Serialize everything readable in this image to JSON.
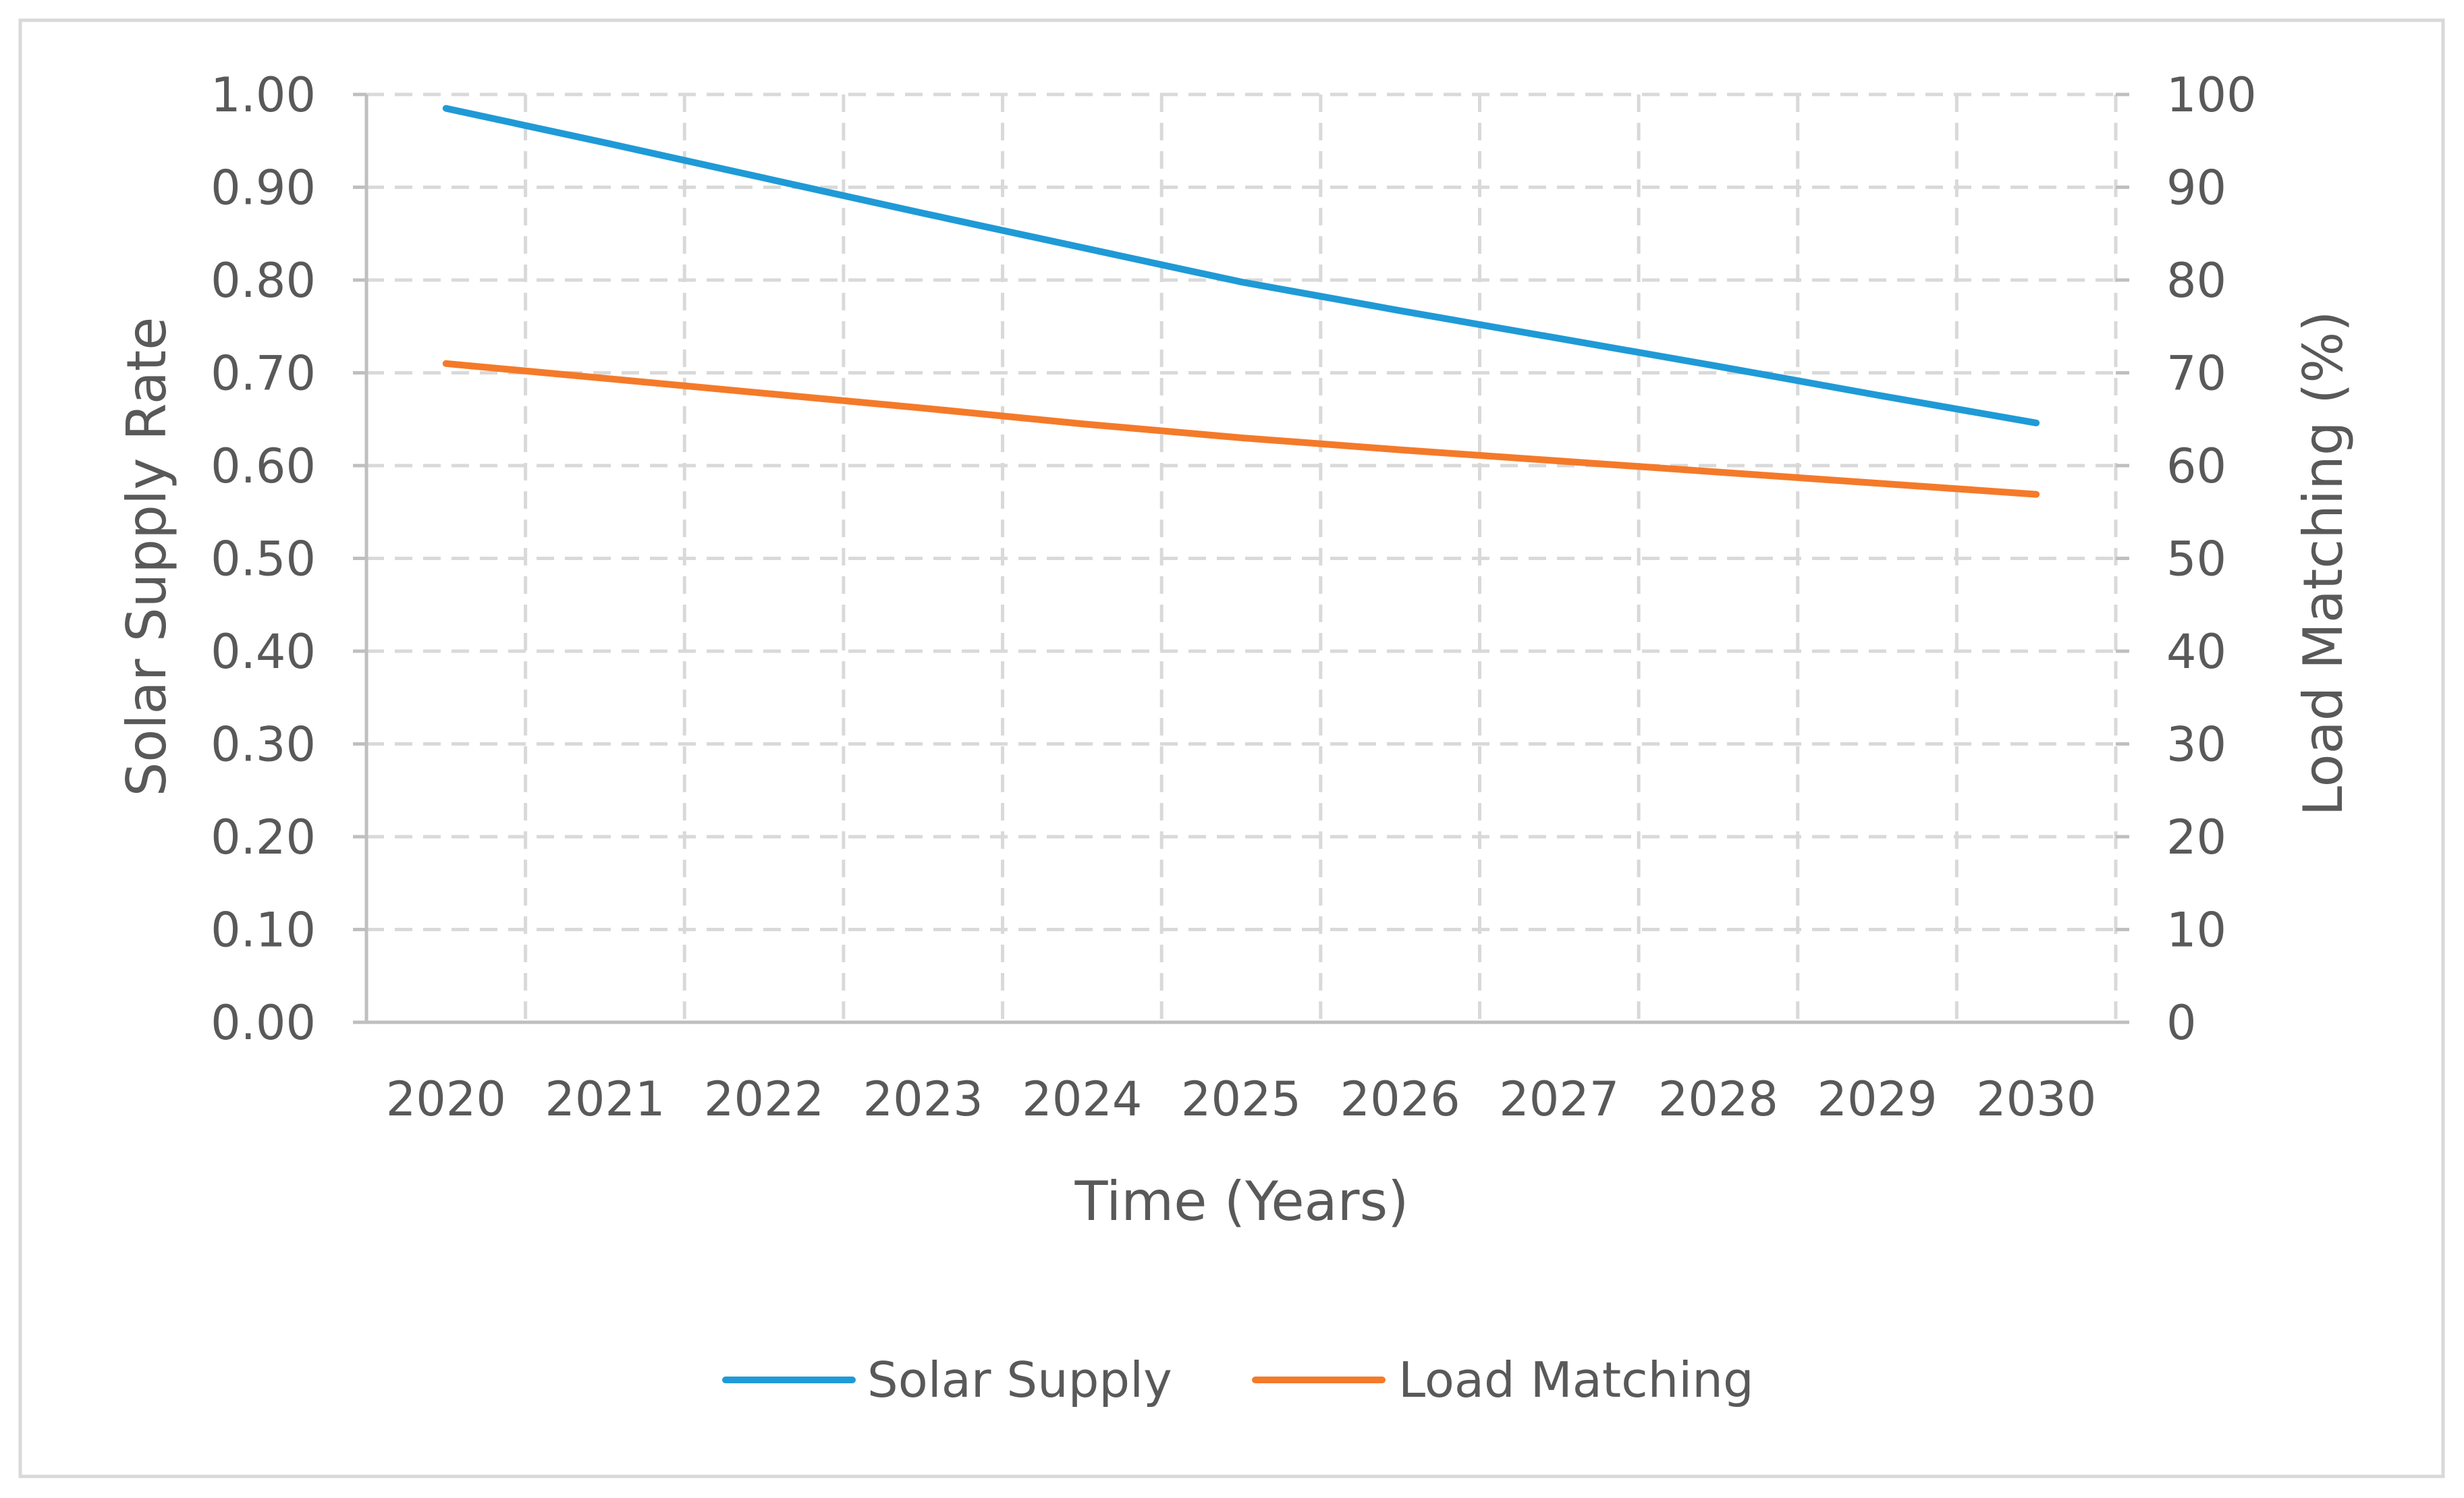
{
  "chart_data": {
    "type": "line",
    "title": "",
    "xlabel": "Time (Years)",
    "ylabel": "Solar Supply Rate",
    "y2label": "Load Matching (%)",
    "categories": [
      "2020",
      "2021",
      "2022",
      "2023",
      "2024",
      "2025",
      "2026",
      "2027",
      "2028",
      "2029",
      "2030"
    ],
    "ylim": [
      0,
      1.0
    ],
    "y2lim": [
      0,
      100
    ],
    "yticks": [
      "0.00",
      "0.10",
      "0.20",
      "0.30",
      "0.40",
      "0.50",
      "0.60",
      "0.70",
      "0.80",
      "0.90",
      "1.00"
    ],
    "y2ticks": [
      "0",
      "10",
      "20",
      "30",
      "40",
      "50",
      "60",
      "70",
      "80",
      "90",
      "100"
    ],
    "grid": true,
    "legend_position": "bottom",
    "series": [
      {
        "name": "Solar Supply",
        "axis": "left",
        "color": "#1f9ad6",
        "values": [
          0.985,
          0.948,
          0.91,
          0.872,
          0.835,
          0.798,
          0.767,
          0.737,
          0.707,
          0.676,
          0.646
        ]
      },
      {
        "name": "Load Matching",
        "axis": "right",
        "color": "#f47a2a",
        "values": [
          71.0,
          69.4,
          67.8,
          66.2,
          64.5,
          63.0,
          61.7,
          60.5,
          59.3,
          58.1,
          56.9
        ]
      }
    ]
  }
}
